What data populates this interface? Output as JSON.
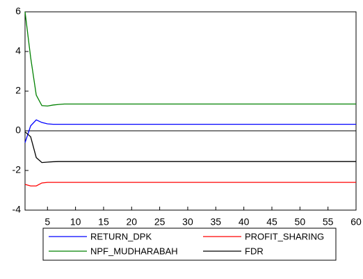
{
  "chart_data": {
    "type": "line",
    "x": [
      1,
      2,
      3,
      4,
      5,
      6,
      7,
      8,
      9,
      10,
      11,
      12,
      13,
      14,
      15,
      16,
      17,
      18,
      19,
      20,
      21,
      22,
      23,
      24,
      25,
      26,
      27,
      28,
      29,
      30,
      31,
      32,
      33,
      34,
      35,
      36,
      37,
      38,
      39,
      40,
      41,
      42,
      43,
      44,
      45,
      46,
      47,
      48,
      49,
      50,
      51,
      52,
      53,
      54,
      55,
      56,
      57,
      58,
      59,
      60
    ],
    "series": [
      {
        "name": "RETURN_DPK",
        "color": "#0000ff",
        "values": [
          -0.6,
          0.25,
          0.55,
          0.42,
          0.35,
          0.33,
          0.33,
          0.33,
          0.33,
          0.33,
          0.33,
          0.33,
          0.33,
          0.33,
          0.33,
          0.33,
          0.33,
          0.33,
          0.33,
          0.33,
          0.33,
          0.33,
          0.33,
          0.33,
          0.33,
          0.33,
          0.33,
          0.33,
          0.33,
          0.33,
          0.33,
          0.33,
          0.33,
          0.33,
          0.33,
          0.33,
          0.33,
          0.33,
          0.33,
          0.33,
          0.33,
          0.33,
          0.33,
          0.33,
          0.33,
          0.33,
          0.33,
          0.33,
          0.33,
          0.33,
          0.33,
          0.33,
          0.33,
          0.33,
          0.33,
          0.33,
          0.33,
          0.33,
          0.33,
          0.33
        ]
      },
      {
        "name": "PROFIT_SHARING",
        "color": "#ff0000",
        "values": [
          -2.7,
          -2.78,
          -2.78,
          -2.63,
          -2.6,
          -2.6,
          -2.6,
          -2.6,
          -2.6,
          -2.6,
          -2.6,
          -2.6,
          -2.6,
          -2.6,
          -2.6,
          -2.6,
          -2.6,
          -2.6,
          -2.6,
          -2.6,
          -2.6,
          -2.6,
          -2.6,
          -2.6,
          -2.6,
          -2.6,
          -2.6,
          -2.6,
          -2.6,
          -2.6,
          -2.6,
          -2.6,
          -2.6,
          -2.6,
          -2.6,
          -2.6,
          -2.6,
          -2.6,
          -2.6,
          -2.6,
          -2.6,
          -2.6,
          -2.6,
          -2.6,
          -2.6,
          -2.6,
          -2.6,
          -2.6,
          -2.6,
          -2.6,
          -2.6,
          -2.6,
          -2.6,
          -2.6,
          -2.6,
          -2.6,
          -2.6,
          -2.6,
          -2.6,
          -2.6
        ]
      },
      {
        "name": "NPF_MUDHARABAH",
        "color": "#008000",
        "values": [
          6.0,
          3.7,
          1.8,
          1.27,
          1.25,
          1.3,
          1.33,
          1.35,
          1.35,
          1.35,
          1.35,
          1.35,
          1.35,
          1.35,
          1.35,
          1.35,
          1.35,
          1.35,
          1.35,
          1.35,
          1.35,
          1.35,
          1.35,
          1.35,
          1.35,
          1.35,
          1.35,
          1.35,
          1.35,
          1.35,
          1.35,
          1.35,
          1.35,
          1.35,
          1.35,
          1.35,
          1.35,
          1.35,
          1.35,
          1.35,
          1.35,
          1.35,
          1.35,
          1.35,
          1.35,
          1.35,
          1.35,
          1.35,
          1.35,
          1.35,
          1.35,
          1.35,
          1.35,
          1.35,
          1.35,
          1.35,
          1.35,
          1.35,
          1.35,
          1.35
        ]
      },
      {
        "name": "FDR",
        "color": "#000000",
        "values": [
          -0.05,
          -0.3,
          -1.35,
          -1.6,
          -1.58,
          -1.56,
          -1.55,
          -1.55,
          -1.55,
          -1.55,
          -1.55,
          -1.55,
          -1.55,
          -1.55,
          -1.55,
          -1.55,
          -1.55,
          -1.55,
          -1.55,
          -1.55,
          -1.55,
          -1.55,
          -1.55,
          -1.55,
          -1.55,
          -1.55,
          -1.55,
          -1.55,
          -1.55,
          -1.55,
          -1.55,
          -1.55,
          -1.55,
          -1.55,
          -1.55,
          -1.55,
          -1.55,
          -1.55,
          -1.55,
          -1.55,
          -1.55,
          -1.55,
          -1.55,
          -1.55,
          -1.55,
          -1.55,
          -1.55,
          -1.55,
          -1.55,
          -1.55,
          -1.55,
          -1.55,
          -1.55,
          -1.55,
          -1.55,
          -1.55,
          -1.55,
          -1.55,
          -1.55,
          -1.55
        ]
      }
    ],
    "xlim": [
      1,
      60
    ],
    "xticks": [
      5,
      10,
      15,
      20,
      25,
      30,
      35,
      40,
      45,
      50,
      55,
      60
    ],
    "ylim": [
      -4,
      6
    ],
    "yticks": [
      -4,
      -2,
      0,
      2,
      4,
      6
    ],
    "zero_line": true,
    "legend": "bottom"
  }
}
